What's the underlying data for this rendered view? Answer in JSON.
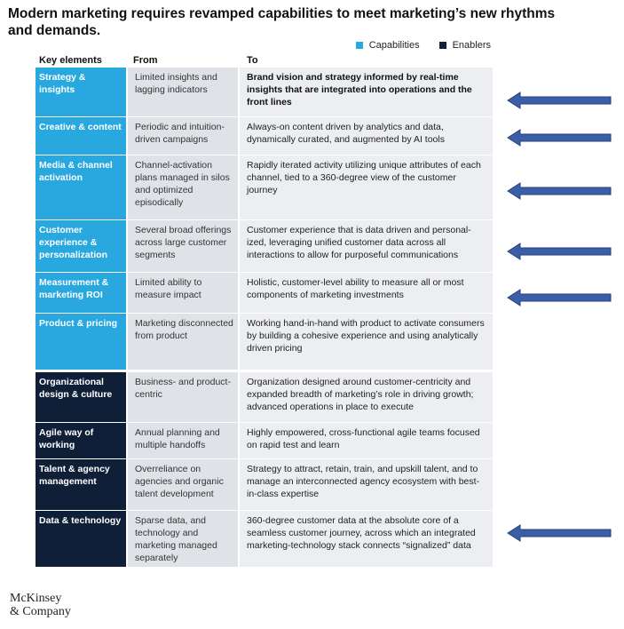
{
  "title": "Modern marketing requires revamped capabilities to meet marketing’s new rhythms and demands.",
  "legend": [
    {
      "label": "Capabilities",
      "color": "#29a8e0"
    },
    {
      "label": "Enablers",
      "color": "#101f38"
    }
  ],
  "headers": {
    "col1": "Key elements",
    "col2": "From",
    "col3": "To"
  },
  "rows": [
    {
      "key": "Strategy & insights",
      "from": "Limited insights and lagging indicators",
      "to": "Brand vision and strategy informed by real-time insights that are integrated into operations and the front lines",
      "type": "capability",
      "arrow": true
    },
    {
      "key": "Creative & content",
      "from": "Periodic and intuition-driven campaigns",
      "to": "Always-on content driven by analytics and data, dynamically curated, and  augmented by AI tools",
      "type": "capability",
      "arrow": true
    },
    {
      "key": "Media & channel activation",
      "from": "Channel-activation plans managed in silos and optimized episodically",
      "to": "Rapidly iterated activity utilizing unique attributes of each channel, tied to a 360-degree view of the customer journey",
      "type": "capability",
      "arrow": true
    },
    {
      "key": "Customer experience & personalization",
      "from": "Several broad offerings across large customer segments",
      "to": "Customer experience that is data driven and personal-ized, leveraging unified customer data across all interactions to allow for purposeful communications",
      "type": "capability",
      "arrow": true
    },
    {
      "key": "Measurement & marketing ROI",
      "from": "Limited ability to measure impact",
      "to": "Holistic, customer-level ability to measure all or most components of marketing  investments",
      "type": "capability",
      "arrow": true
    },
    {
      "key": "Product & pricing",
      "from": "Marketing disconnected from product",
      "to": "Working hand-in-hand with product to activate consumers by building a cohesive experience and using analytically driven pricing",
      "type": "capability",
      "arrow": false
    },
    {
      "key": "Organizational design & culture",
      "from": "Business- and product-centric",
      "to": "Organization designed around customer-centricity and expanded breadth of marketing’s role in driving growth; advanced operations in place to execute",
      "type": "enabler",
      "arrow": false
    },
    {
      "key": "Agile way of working",
      "from": "Annual planning and multiple handoffs",
      "to": "Highly empowered, cross-functional agile teams focused on rapid test and learn",
      "type": "enabler",
      "arrow": false
    },
    {
      "key": "Talent & agency management",
      "from": "Overreliance on agencies and organic talent development",
      "to": "Strategy to attract, retain, train, and upskill talent, and to manage an interconnected agency ecosystem with best-in-class expertise",
      "type": "enabler",
      "arrow": false
    },
    {
      "key": "Data & technology",
      "from": "Sparse data, and technology and marketing managed separately",
      "to": "360-degree customer data at the absolute core of a seamless customer journey, across which an integrated marketing-technology stack connects “signalized” data",
      "type": "enabler",
      "arrow": true
    }
  ],
  "arrow_color": "#3a5fa8",
  "logo": {
    "line1": "McKinsey",
    "line2": "& Company"
  }
}
